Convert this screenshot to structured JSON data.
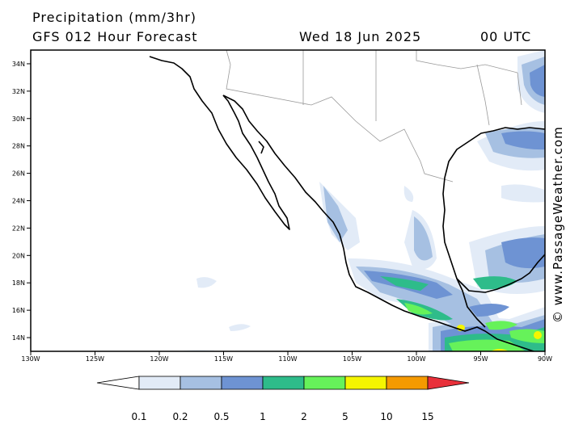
{
  "title": {
    "line1": "Precipitation (mm/3hr)",
    "model": "GFS 012 Hour Forecast",
    "date": "Wed 18 Jun 2025",
    "time": "00 UTC"
  },
  "watermark": "© www.PassageWeather.com",
  "map": {
    "lon_range": [
      -130,
      -90
    ],
    "lat_range": [
      13,
      35
    ],
    "lon_ticks": [
      "130W",
      "125W",
      "120W",
      "115W",
      "110W",
      "105W",
      "100W",
      "95W",
      "90W"
    ],
    "lat_ticks": [
      "14N",
      "16N",
      "18N",
      "20N",
      "22N",
      "24N",
      "26N",
      "28N",
      "30N",
      "32N",
      "34N"
    ]
  },
  "legend": {
    "labels": [
      "0.1",
      "0.2",
      "0.5",
      "1",
      "2",
      "5",
      "10",
      "15"
    ],
    "colors": [
      "#ffffff",
      "#e2ebf7",
      "#a6c0e2",
      "#6e93d3",
      "#2ebc8a",
      "#66f25a",
      "#f5f500",
      "#f59a00",
      "#e8303a"
    ]
  }
}
